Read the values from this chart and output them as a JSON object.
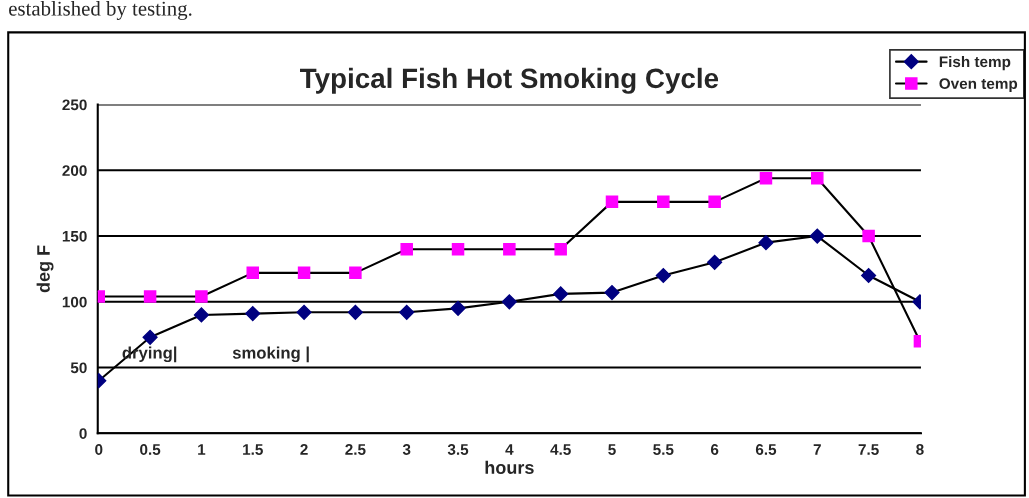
{
  "chart_data": {
    "type": "line",
    "title": "Typical Fish Hot Smoking Cycle",
    "xlabel": "hours",
    "ylabel": "deg F",
    "categories": [
      "0",
      "0.5",
      "1",
      "1.5",
      "2",
      "2.5",
      "3",
      "3.5",
      "4",
      "4.5",
      "5",
      "5.5",
      "6",
      "6.5",
      "7",
      "7.5",
      "8"
    ],
    "series": [
      {
        "name": "Fish temp",
        "color": "#000080",
        "marker": "diamond",
        "values": [
          40,
          73,
          90,
          91,
          92,
          92,
          92,
          95,
          100,
          106,
          107,
          120,
          130,
          145,
          150,
          120,
          100
        ]
      },
      {
        "name": "Oven temp",
        "color": "#ff00ff",
        "marker": "square",
        "values": [
          104,
          104,
          104,
          122,
          122,
          122,
          140,
          140,
          140,
          140,
          176,
          176,
          176,
          194,
          194,
          150,
          70
        ]
      }
    ],
    "ylim": [
      0,
      250
    ],
    "yticks": [
      0,
      50,
      100,
      150,
      200,
      250
    ],
    "grid": "y",
    "legend": "top right",
    "line_style": "solid",
    "annotations": [
      "established by testing.",
      "drying|",
      "smoking |"
    ]
  }
}
